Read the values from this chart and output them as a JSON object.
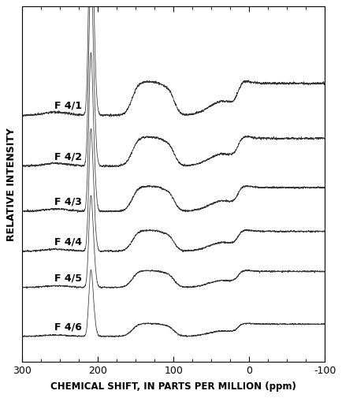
{
  "title": "",
  "xlabel": "CHEMICAL SHIFT, IN PARTS PER MILLION (ppm)",
  "ylabel": "RELATIVE INTENSITY",
  "xlim": [
    300,
    -100
  ],
  "ylim": [
    -0.3,
    9.5
  ],
  "xticks": [
    300,
    200,
    100,
    0,
    -100
  ],
  "background_color": "#ffffff",
  "line_color": "#333333",
  "labels": [
    "F 4/1",
    "F 4/2",
    "F 4/3",
    "F 4/4",
    "F 4/5",
    "F 4/6"
  ],
  "offsets": [
    6.5,
    5.1,
    3.85,
    2.75,
    1.75,
    0.4
  ],
  "label_fontsize": 9,
  "seed": 42
}
